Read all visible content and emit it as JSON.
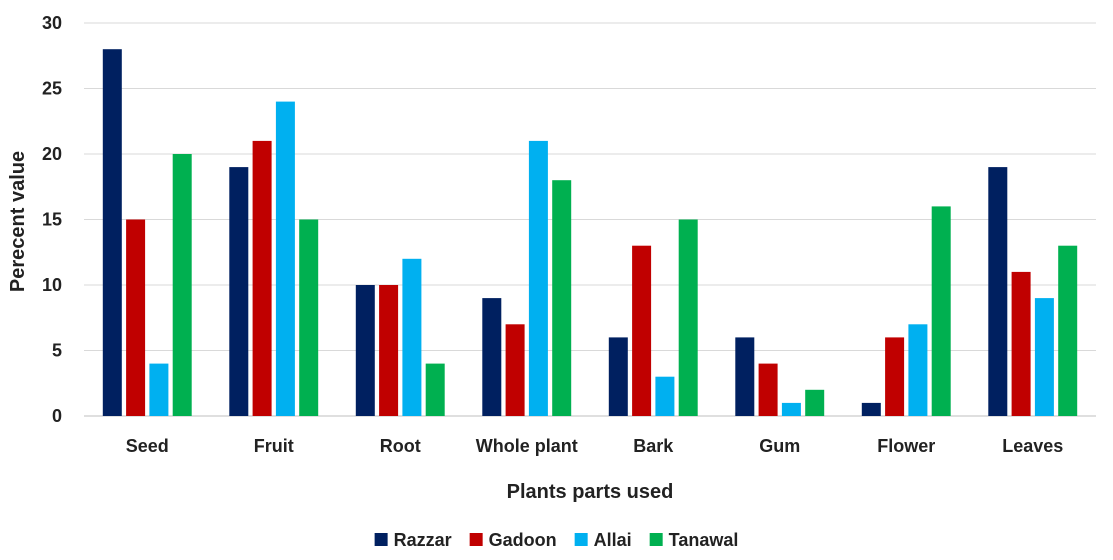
{
  "chart_data": {
    "type": "bar",
    "title": "",
    "xlabel": "Plants parts used",
    "ylabel": "Perecent value",
    "ylim": [
      0,
      30
    ],
    "yticks": [
      0,
      5,
      10,
      15,
      20,
      25,
      30
    ],
    "grid": true,
    "legend": "bottom",
    "categories": [
      "Seed",
      "Fruit",
      "Root",
      "Whole plant",
      "Bark",
      "Gum",
      "Flower",
      "Leaves"
    ],
    "series": [
      {
        "name": "Razzar",
        "color": "#002060",
        "values": [
          28,
          19,
          10,
          9,
          6,
          6,
          1,
          19
        ]
      },
      {
        "name": "Gadoon",
        "color": "#c00000",
        "values": [
          15,
          21,
          10,
          7,
          13,
          4,
          6,
          11
        ]
      },
      {
        "name": "Allai",
        "color": "#00b0f0",
        "values": [
          4,
          24,
          12,
          21,
          3,
          1,
          7,
          9
        ]
      },
      {
        "name": "Tanawal",
        "color": "#00b050",
        "values": [
          20,
          15,
          4,
          18,
          15,
          2,
          16,
          13
        ]
      }
    ]
  }
}
